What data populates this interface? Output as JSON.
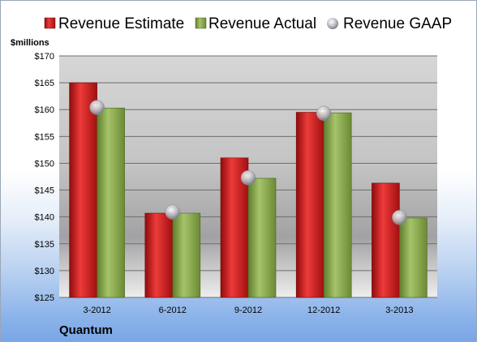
{
  "chart_data": {
    "type": "bar",
    "categories": [
      "3-2012",
      "6-2012",
      "9-2012",
      "12-2012",
      "3-2013"
    ],
    "series": [
      {
        "name": "Revenue Estimate",
        "kind": "bar",
        "color": "#d42a2a",
        "values": [
          165.0,
          140.7,
          151.0,
          159.5,
          146.3
        ]
      },
      {
        "name": "Revenue Actual",
        "kind": "bar",
        "color": "#8fae52",
        "values": [
          160.3,
          140.7,
          147.2,
          159.4,
          139.8
        ]
      },
      {
        "name": "Revenue GAAP",
        "kind": "marker",
        "color": "#b8b8c0",
        "values": [
          160.4,
          140.9,
          147.3,
          159.3,
          139.9
        ]
      }
    ],
    "ylabel": "$millions",
    "ylim": [
      125,
      170
    ],
    "yticks": [
      "$125",
      "$130",
      "$135",
      "$140",
      "$145",
      "$150",
      "$155",
      "$160",
      "$165",
      "$170"
    ],
    "grid": true,
    "legend_position": "top"
  },
  "company": "Quantum"
}
